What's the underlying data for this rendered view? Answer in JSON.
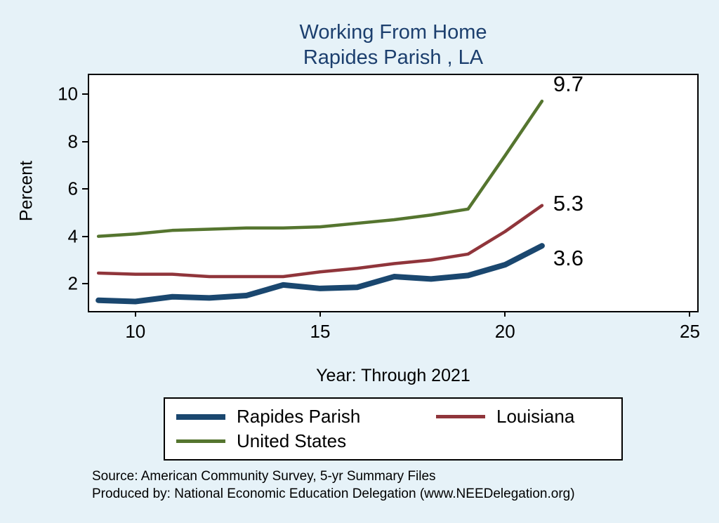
{
  "title": {
    "line1": "Working From Home",
    "line2": "Rapides Parish , LA"
  },
  "chart_data": {
    "type": "line",
    "x": [
      9,
      10,
      11,
      12,
      13,
      14,
      15,
      16,
      17,
      18,
      19,
      20,
      21
    ],
    "series": [
      {
        "name": "Rapides Parish",
        "color": "#1a476f",
        "line_width": 8,
        "end_label": "3.6",
        "values": [
          1.3,
          1.25,
          1.45,
          1.4,
          1.5,
          1.95,
          1.8,
          1.85,
          2.3,
          2.2,
          2.35,
          2.8,
          3.6
        ]
      },
      {
        "name": "Louisiana",
        "color": "#90353b",
        "line_width": 4.5,
        "end_label": "5.3",
        "values": [
          2.45,
          2.4,
          2.4,
          2.3,
          2.3,
          2.3,
          2.5,
          2.65,
          2.85,
          3.0,
          3.25,
          4.2,
          5.3
        ]
      },
      {
        "name": "United States",
        "color": "#55752f",
        "line_width": 4.5,
        "end_label": "9.7",
        "values": [
          4.0,
          4.1,
          4.25,
          4.3,
          4.35,
          4.35,
          4.4,
          4.55,
          4.7,
          4.9,
          5.15,
          7.4,
          9.7
        ]
      }
    ],
    "xlabel": "Year: Through 2021",
    "ylabel": "Percent",
    "x_ticks": [
      10,
      15,
      20,
      25
    ],
    "y_ticks": [
      2,
      4,
      6,
      8,
      10
    ],
    "xlim": [
      8.75,
      25.2
    ],
    "ylim": [
      0.85,
      10.8
    ],
    "grid": false,
    "legend_position": "bottom"
  },
  "footer": {
    "source": "Source: American Community Survey, 5-yr Summary Files",
    "produced_by": "Produced by: National Economic Education Delegation (www.NEEDelegation.org)"
  }
}
